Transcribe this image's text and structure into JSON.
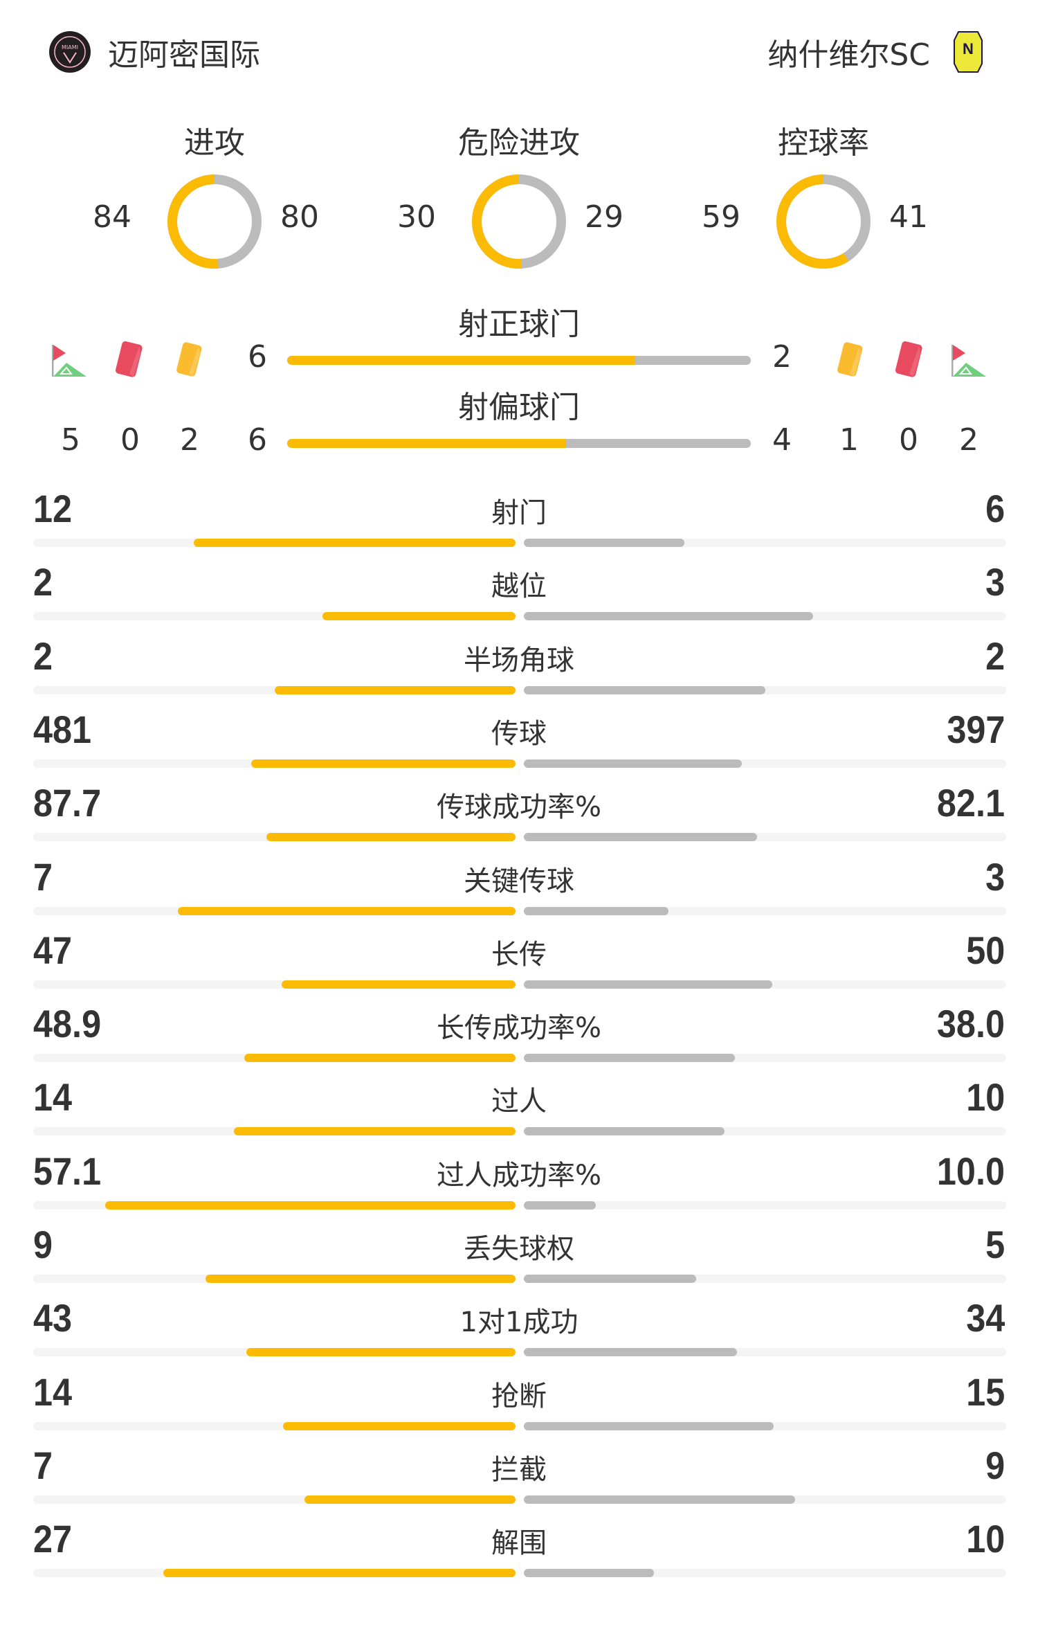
{
  "colors": {
    "home": "#fbbb05",
    "away": "#bbbbbb",
    "track": "#f4f4f4"
  },
  "home": {
    "name": "迈阿密国际",
    "logo": "inter-miami-crest",
    "logo_text": "MIAMI"
  },
  "away": {
    "name": "纳什维尔SC",
    "logo": "nashville-sc-crest",
    "logo_text": "N"
  },
  "rings": [
    {
      "label": "进攻",
      "home": 84,
      "away": 80
    },
    {
      "label": "危险进攻",
      "home": 30,
      "away": 29
    },
    {
      "label": "控球率",
      "home": 59,
      "away": 41
    }
  ],
  "shots": {
    "on_target": {
      "label": "射正球门",
      "home": 6,
      "away": 2
    },
    "off_target": {
      "label": "射偏球门",
      "home": 6,
      "away": 4
    }
  },
  "events": {
    "home": {
      "corners": 5,
      "red_cards": 0,
      "yellow_cards": 2
    },
    "away": {
      "corners": 2,
      "red_cards": 0,
      "yellow_cards": 1
    }
  },
  "stats": [
    {
      "label": "射门",
      "home": "12",
      "away": "6"
    },
    {
      "label": "越位",
      "home": "2",
      "away": "3"
    },
    {
      "label": "半场角球",
      "home": "2",
      "away": "2"
    },
    {
      "label": "传球",
      "home": "481",
      "away": "397"
    },
    {
      "label": "传球成功率%",
      "home": "87.7",
      "away": "82.1"
    },
    {
      "label": "关键传球",
      "home": "7",
      "away": "3"
    },
    {
      "label": "长传",
      "home": "47",
      "away": "50"
    },
    {
      "label": "长传成功率%",
      "home": "48.9",
      "away": "38.0"
    },
    {
      "label": "过人",
      "home": "14",
      "away": "10"
    },
    {
      "label": "过人成功率%",
      "home": "57.1",
      "away": "10.0"
    },
    {
      "label": "丢失球权",
      "home": "9",
      "away": "5"
    },
    {
      "label": "1对1成功",
      "home": "43",
      "away": "34"
    },
    {
      "label": "抢断",
      "home": "14",
      "away": "15"
    },
    {
      "label": "拦截",
      "home": "7",
      "away": "9"
    },
    {
      "label": "解围",
      "home": "27",
      "away": "10"
    }
  ]
}
